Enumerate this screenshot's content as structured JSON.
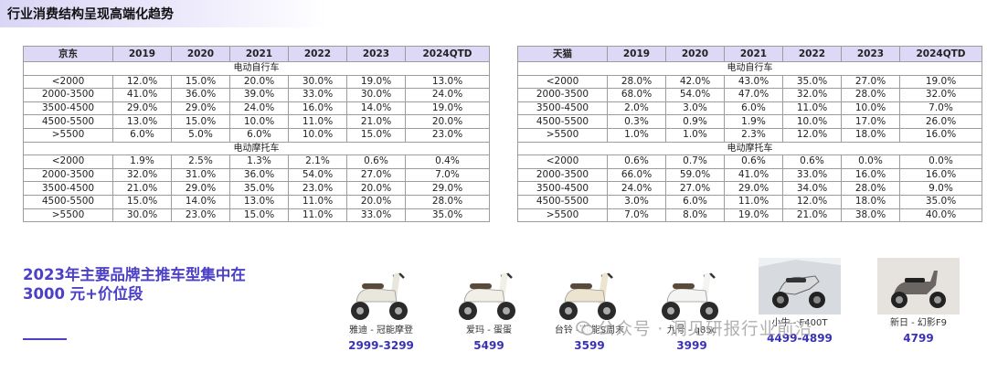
{
  "page_title": "行业消费结构呈现高端化趋势",
  "tables": [
    {
      "platform": "京东",
      "years": [
        "2019",
        "2020",
        "2021",
        "2022",
        "2023",
        "2024QTD"
      ],
      "sections": [
        {
          "label": "电动自行车",
          "rows": [
            {
              "range": "<2000",
              "values": [
                "12.0%",
                "15.0%",
                "20.0%",
                "30.0%",
                "19.0%",
                "13.0%"
              ]
            },
            {
              "range": "2000-3500",
              "values": [
                "41.0%",
                "36.0%",
                "39.0%",
                "33.0%",
                "30.0%",
                "24.0%"
              ]
            },
            {
              "range": "3500-4500",
              "values": [
                "29.0%",
                "29.0%",
                "24.0%",
                "16.0%",
                "14.0%",
                "19.0%"
              ]
            },
            {
              "range": "4500-5500",
              "values": [
                "13.0%",
                "15.0%",
                "10.0%",
                "11.0%",
                "21.0%",
                "20.0%"
              ]
            },
            {
              "range": ">5500",
              "values": [
                "6.0%",
                "5.0%",
                "6.0%",
                "10.0%",
                "15.0%",
                "23.0%"
              ]
            }
          ]
        },
        {
          "label": "电动摩托车",
          "rows": [
            {
              "range": "<2000",
              "values": [
                "1.9%",
                "2.5%",
                "1.3%",
                "2.1%",
                "0.6%",
                "0.4%"
              ]
            },
            {
              "range": "2000-3500",
              "values": [
                "32.0%",
                "31.0%",
                "36.0%",
                "54.0%",
                "27.0%",
                "7.0%"
              ]
            },
            {
              "range": "3500-4500",
              "values": [
                "21.0%",
                "29.0%",
                "35.0%",
                "23.0%",
                "20.0%",
                "29.0%"
              ]
            },
            {
              "range": "4500-5500",
              "values": [
                "15.0%",
                "14.0%",
                "13.0%",
                "11.0%",
                "20.0%",
                "28.0%"
              ]
            },
            {
              "range": ">5500",
              "values": [
                "30.0%",
                "23.0%",
                "15.0%",
                "11.0%",
                "33.0%",
                "35.0%"
              ]
            }
          ]
        }
      ]
    },
    {
      "platform": "天猫",
      "years": [
        "2019",
        "2020",
        "2021",
        "2022",
        "2023",
        "2024QTD"
      ],
      "sections": [
        {
          "label": "电动自行车",
          "rows": [
            {
              "range": "<2000",
              "values": [
                "28.0%",
                "42.0%",
                "43.0%",
                "35.0%",
                "27.0%",
                "19.0%"
              ]
            },
            {
              "range": "2000-3500",
              "values": [
                "68.0%",
                "54.0%",
                "47.0%",
                "32.0%",
                "28.0%",
                "32.0%"
              ]
            },
            {
              "range": "3500-4500",
              "values": [
                "2.0%",
                "3.0%",
                "6.0%",
                "11.0%",
                "10.0%",
                "7.0%"
              ]
            },
            {
              "range": "4500-5500",
              "values": [
                "0.3%",
                "0.9%",
                "1.9%",
                "10.0%",
                "17.0%",
                "26.0%"
              ]
            },
            {
              "range": ">5500",
              "values": [
                "1.0%",
                "1.0%",
                "2.3%",
                "12.0%",
                "18.0%",
                "16.0%"
              ]
            }
          ]
        },
        {
          "label": "电动摩托车",
          "rows": [
            {
              "range": "<2000",
              "values": [
                "0.6%",
                "0.7%",
                "0.6%",
                "0.6%",
                "0.0%",
                "0.0%"
              ]
            },
            {
              "range": "2000-3500",
              "values": [
                "66.0%",
                "59.0%",
                "41.0%",
                "33.0%",
                "16.0%",
                "16.0%"
              ]
            },
            {
              "range": "3500-4500",
              "values": [
                "24.0%",
                "27.0%",
                "29.0%",
                "34.0%",
                "28.0%",
                "9.0%"
              ]
            },
            {
              "range": "4500-5500",
              "values": [
                "3.0%",
                "6.0%",
                "11.0%",
                "12.0%",
                "18.0%",
                "35.0%"
              ]
            },
            {
              "range": ">5500",
              "values": [
                "7.0%",
                "8.0%",
                "19.0%",
                "21.0%",
                "38.0%",
                "40.0%"
              ]
            }
          ]
        }
      ]
    }
  ],
  "promo": {
    "line1": "2023年主要品牌主推车型集中在",
    "line2": "3000 元+价位段"
  },
  "products": [
    {
      "name": "雅迪 - 冠能摩登",
      "price": "2999-3299",
      "body_color": "#e9e6dc"
    },
    {
      "name": "爱玛 - 蛋蛋",
      "price": "5499",
      "body_color": "#f1efe6"
    },
    {
      "name": "台铃 - 超能S周末",
      "price": "3599",
      "body_color": "#ece4cf"
    },
    {
      "name": "九号 - q85c",
      "price": "3999",
      "body_color": "#f4f4f2"
    },
    {
      "name": "小牛 - F400T",
      "price": "4499-4899",
      "body_color": "#d9dadc"
    },
    {
      "name": "新日 - 幻影F9",
      "price": "4799",
      "body_color": "#c9c4c0"
    }
  ],
  "watermark": "公众号 · 洞见研报行业前沿",
  "colors": {
    "accent": "#4b40c6",
    "header_fill": "#dcd8f6",
    "price": "#3a32b5"
  }
}
